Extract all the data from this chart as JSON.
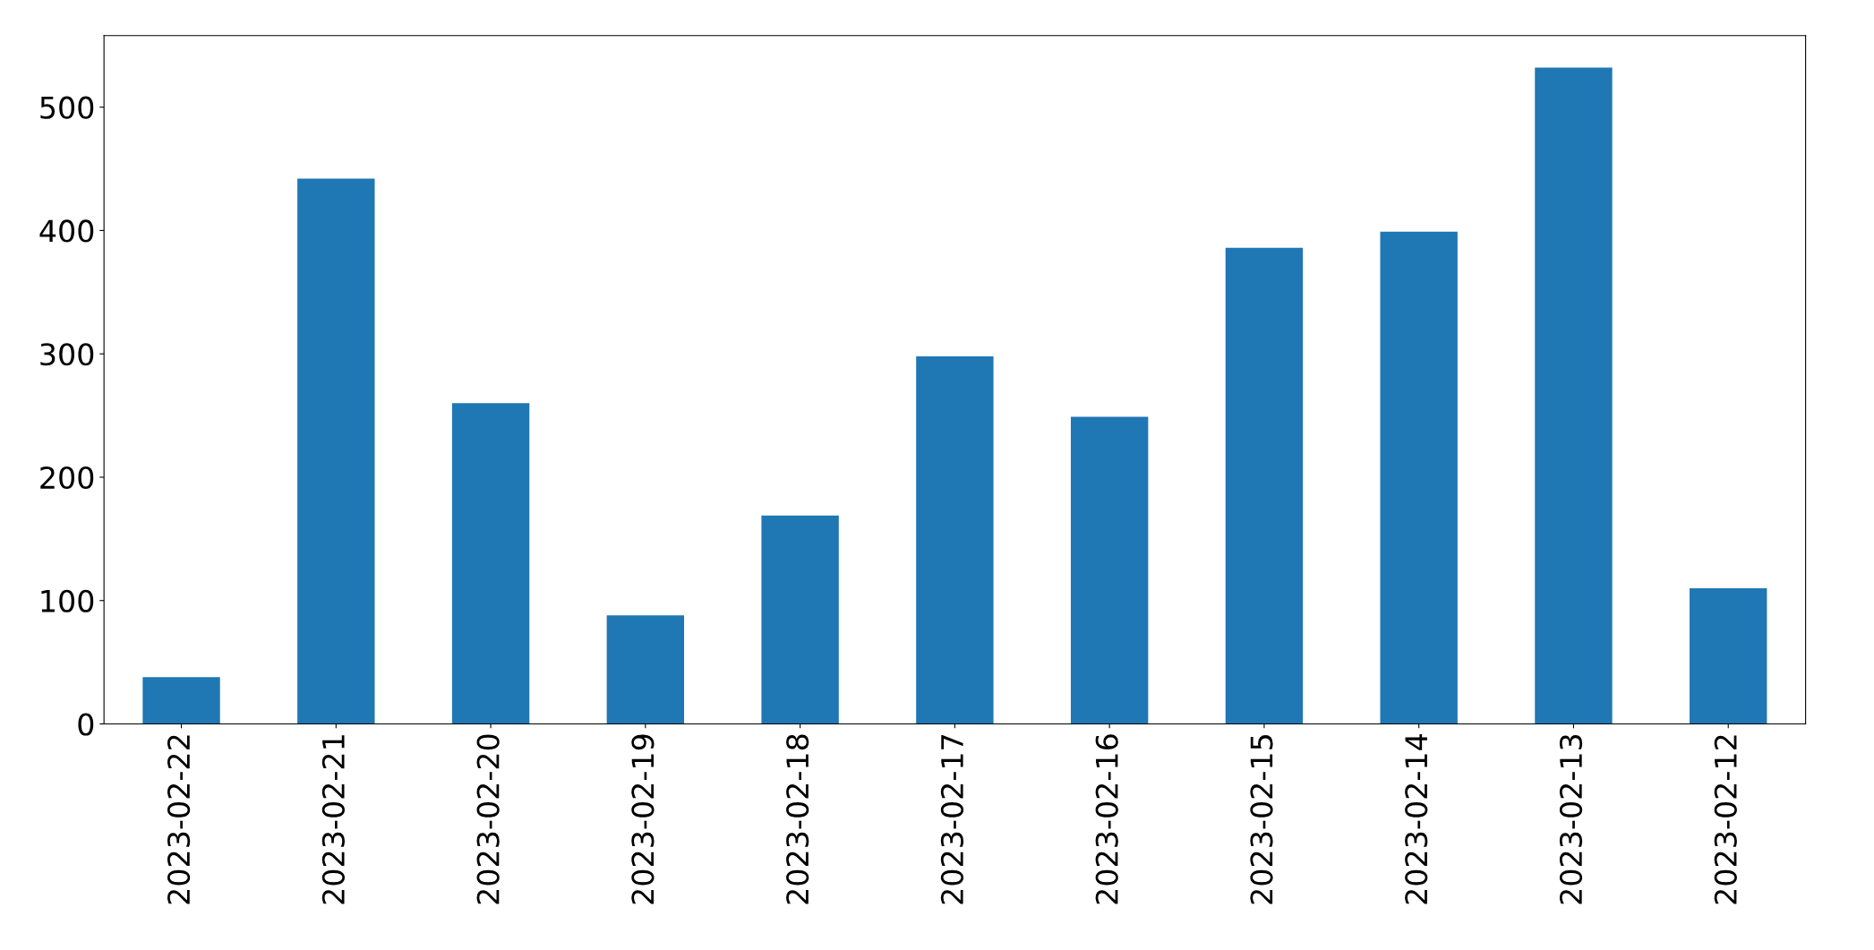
{
  "chart_data": {
    "type": "bar",
    "categories": [
      "2023-02-22",
      "2023-02-21",
      "2023-02-20",
      "2023-02-19",
      "2023-02-18",
      "2023-02-17",
      "2023-02-16",
      "2023-02-15",
      "2023-02-14",
      "2023-02-13",
      "2023-02-12"
    ],
    "values": [
      38,
      442,
      260,
      88,
      169,
      298,
      249,
      386,
      399,
      532,
      110
    ],
    "color": "#1f77b4",
    "ylim": [
      0,
      558
    ],
    "yticks": [
      0,
      100,
      200,
      300,
      400,
      500
    ],
    "grid": false
  }
}
